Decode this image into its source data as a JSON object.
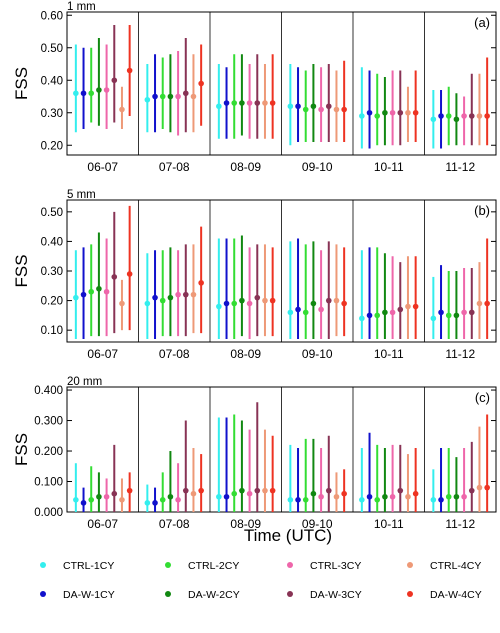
{
  "figure": {
    "xlabel": "Time  (UTC)",
    "ylabel": "FSS"
  },
  "legend": [
    {
      "name": "CTRL-1CY",
      "color": "#33eeee"
    },
    {
      "name": "CTRL-2CY",
      "color": "#33dd33"
    },
    {
      "name": "CTRL-3CY",
      "color": "#ee66aa"
    },
    {
      "name": "CTRL-4CY",
      "color": "#ee9977"
    },
    {
      "name": "DA-W-1CY",
      "color": "#1111cc"
    },
    {
      "name": "DA-W-2CY",
      "color": "#118811"
    },
    {
      "name": "DA-W-3CY",
      "color": "#883355"
    },
    {
      "name": "DA-W-4CY",
      "color": "#ee3322"
    }
  ],
  "chart_data": [
    {
      "type": "scatter",
      "title": "1 mm",
      "panel_label": "(a)",
      "ylabel": "FSS",
      "categories": [
        "06-07",
        "07-08",
        "08-09",
        "09-10",
        "10-11",
        "11-12"
      ],
      "ylim": [
        0.17,
        0.61
      ],
      "yticks": [
        "0.60",
        "0.50",
        "0.40",
        "0.30",
        "0.20"
      ],
      "ytick_values": [
        0.6,
        0.5,
        0.4,
        0.3,
        0.2
      ],
      "series": [
        {
          "name": "CTRL-1CY",
          "mean": [
            0.36,
            0.34,
            0.32,
            0.32,
            0.29,
            0.28
          ],
          "min": [
            0.24,
            0.24,
            0.22,
            0.2,
            0.19,
            0.19
          ],
          "max": [
            0.51,
            0.45,
            0.45,
            0.45,
            0.44,
            0.37
          ]
        },
        {
          "name": "DA-W-1CY",
          "mean": [
            0.36,
            0.35,
            0.33,
            0.32,
            0.3,
            0.29
          ],
          "min": [
            0.25,
            0.24,
            0.22,
            0.21,
            0.19,
            0.19
          ],
          "max": [
            0.5,
            0.48,
            0.44,
            0.44,
            0.43,
            0.37
          ]
        },
        {
          "name": "CTRL-2CY",
          "mean": [
            0.36,
            0.35,
            0.33,
            0.31,
            0.29,
            0.29
          ],
          "min": [
            0.27,
            0.25,
            0.22,
            0.21,
            0.2,
            0.2
          ],
          "max": [
            0.5,
            0.47,
            0.48,
            0.43,
            0.42,
            0.38
          ]
        },
        {
          "name": "DA-W-2CY",
          "mean": [
            0.37,
            0.35,
            0.33,
            0.32,
            0.3,
            0.28
          ],
          "min": [
            0.26,
            0.24,
            0.23,
            0.21,
            0.2,
            0.2
          ],
          "max": [
            0.53,
            0.48,
            0.48,
            0.45,
            0.41,
            0.36
          ]
        },
        {
          "name": "CTRL-3CY",
          "mean": [
            0.37,
            0.35,
            0.33,
            0.31,
            0.3,
            0.29
          ],
          "min": [
            0.25,
            0.23,
            0.22,
            0.21,
            0.2,
            0.2
          ],
          "max": [
            0.51,
            0.49,
            0.45,
            0.44,
            0.43,
            0.35
          ]
        },
        {
          "name": "DA-W-3CY",
          "mean": [
            0.4,
            0.36,
            0.33,
            0.32,
            0.3,
            0.29
          ],
          "min": [
            0.27,
            0.24,
            0.22,
            0.21,
            0.2,
            0.2
          ],
          "max": [
            0.57,
            0.53,
            0.48,
            0.45,
            0.43,
            0.42
          ]
        },
        {
          "name": "CTRL-4CY",
          "mean": [
            0.31,
            0.35,
            0.33,
            0.31,
            0.3,
            0.29
          ],
          "min": [
            0.25,
            0.24,
            0.22,
            0.21,
            0.21,
            0.2
          ],
          "max": [
            0.38,
            0.48,
            0.45,
            0.43,
            0.38,
            0.42
          ]
        },
        {
          "name": "DA-W-4CY",
          "mean": [
            0.43,
            0.39,
            0.33,
            0.31,
            0.3,
            0.29
          ],
          "min": [
            0.29,
            0.26,
            0.22,
            0.21,
            0.21,
            0.2
          ],
          "max": [
            0.57,
            0.51,
            0.48,
            0.46,
            0.43,
            0.47
          ]
        }
      ]
    },
    {
      "type": "scatter",
      "title": "5 mm",
      "panel_label": "(b)",
      "ylabel": "FSS",
      "categories": [
        "06-07",
        "07-08",
        "08-09",
        "09-10",
        "10-11",
        "11-12"
      ],
      "ylim": [
        0.06,
        0.54
      ],
      "yticks": [
        "0.50",
        "0.40",
        "0.30",
        "0.20",
        "0.10"
      ],
      "ytick_values": [
        0.5,
        0.4,
        0.3,
        0.2,
        0.1
      ],
      "series": [
        {
          "name": "CTRL-1CY",
          "mean": [
            0.21,
            0.19,
            0.18,
            0.16,
            0.14,
            0.14
          ],
          "min": [
            0.07,
            0.07,
            0.07,
            0.07,
            0.07,
            0.07
          ],
          "max": [
            0.37,
            0.36,
            0.41,
            0.4,
            0.37,
            0.28
          ]
        },
        {
          "name": "DA-W-1CY",
          "mean": [
            0.22,
            0.21,
            0.19,
            0.17,
            0.15,
            0.16
          ],
          "min": [
            0.07,
            0.07,
            0.07,
            0.07,
            0.07,
            0.07
          ],
          "max": [
            0.38,
            0.37,
            0.41,
            0.41,
            0.38,
            0.32
          ]
        },
        {
          "name": "CTRL-2CY",
          "mean": [
            0.23,
            0.2,
            0.19,
            0.16,
            0.15,
            0.15
          ],
          "min": [
            0.08,
            0.08,
            0.07,
            0.07,
            0.07,
            0.07
          ],
          "max": [
            0.39,
            0.37,
            0.41,
            0.39,
            0.38,
            0.3
          ]
        },
        {
          "name": "DA-W-2CY",
          "mean": [
            0.24,
            0.21,
            0.2,
            0.19,
            0.16,
            0.15
          ],
          "min": [
            0.08,
            0.08,
            0.08,
            0.07,
            0.07,
            0.07
          ],
          "max": [
            0.43,
            0.38,
            0.42,
            0.4,
            0.36,
            0.3
          ]
        },
        {
          "name": "CTRL-3CY",
          "mean": [
            0.23,
            0.22,
            0.19,
            0.17,
            0.16,
            0.16
          ],
          "min": [
            0.08,
            0.08,
            0.07,
            0.07,
            0.07,
            0.07
          ],
          "max": [
            0.41,
            0.37,
            0.38,
            0.37,
            0.35,
            0.31
          ]
        },
        {
          "name": "DA-W-3CY",
          "mean": [
            0.28,
            0.22,
            0.21,
            0.2,
            0.17,
            0.16
          ],
          "min": [
            0.09,
            0.08,
            0.08,
            0.07,
            0.07,
            0.07
          ],
          "max": [
            0.5,
            0.39,
            0.39,
            0.4,
            0.33,
            0.31
          ]
        },
        {
          "name": "CTRL-4CY",
          "mean": [
            0.19,
            0.22,
            0.2,
            0.2,
            0.18,
            0.19
          ],
          "min": [
            0.1,
            0.09,
            0.08,
            0.08,
            0.07,
            0.07
          ],
          "max": [
            0.27,
            0.39,
            0.39,
            0.39,
            0.35,
            0.33
          ]
        },
        {
          "name": "DA-W-4CY",
          "mean": [
            0.29,
            0.26,
            0.2,
            0.19,
            0.18,
            0.19
          ],
          "min": [
            0.1,
            0.09,
            0.08,
            0.08,
            0.07,
            0.07
          ],
          "max": [
            0.52,
            0.45,
            0.38,
            0.38,
            0.35,
            0.41
          ]
        }
      ]
    },
    {
      "type": "scatter",
      "title": "20 mm",
      "panel_label": "(c)",
      "ylabel": "FSS",
      "categories": [
        "06-07",
        "07-08",
        "08-09",
        "09-10",
        "10-11",
        "11-12"
      ],
      "ylim": [
        0,
        0.41
      ],
      "yticks": [
        "0.400",
        "0.300",
        "0.200",
        "0.100",
        "0.000"
      ],
      "ytick_values": [
        0.4,
        0.3,
        0.2,
        0.1,
        0.0
      ],
      "series": [
        {
          "name": "CTRL-1CY",
          "mean": [
            0.04,
            0.03,
            0.05,
            0.04,
            0.04,
            0.04
          ],
          "min": [
            0.0,
            0.0,
            0.0,
            0.0,
            0.0,
            0.0
          ],
          "max": [
            0.16,
            0.09,
            0.31,
            0.22,
            0.21,
            0.14
          ]
        },
        {
          "name": "DA-W-1CY",
          "mean": [
            0.03,
            0.03,
            0.05,
            0.04,
            0.05,
            0.04
          ],
          "min": [
            0.0,
            0.0,
            0.0,
            0.0,
            0.0,
            0.0
          ],
          "max": [
            0.08,
            0.08,
            0.31,
            0.21,
            0.26,
            0.21
          ]
        },
        {
          "name": "CTRL-2CY",
          "mean": [
            0.04,
            0.04,
            0.06,
            0.04,
            0.04,
            0.05
          ],
          "min": [
            0.0,
            0.0,
            0.0,
            0.0,
            0.0,
            0.0
          ],
          "max": [
            0.15,
            0.13,
            0.32,
            0.24,
            0.22,
            0.21
          ]
        },
        {
          "name": "DA-W-2CY",
          "mean": [
            0.05,
            0.05,
            0.07,
            0.06,
            0.05,
            0.05
          ],
          "min": [
            0.0,
            0.0,
            0.0,
            0.0,
            0.0,
            0.0
          ],
          "max": [
            0.13,
            0.2,
            0.3,
            0.24,
            0.21,
            0.18
          ]
        },
        {
          "name": "CTRL-3CY",
          "mean": [
            0.05,
            0.04,
            0.06,
            0.05,
            0.05,
            0.05
          ],
          "min": [
            0.0,
            0.0,
            0.0,
            0.0,
            0.0,
            0.0
          ],
          "max": [
            0.11,
            0.16,
            0.27,
            0.21,
            0.22,
            0.21
          ]
        },
        {
          "name": "DA-W-3CY",
          "mean": [
            0.06,
            0.07,
            0.07,
            0.07,
            0.07,
            0.07
          ],
          "min": [
            0.0,
            0.0,
            0.0,
            0.0,
            0.0,
            0.0
          ],
          "max": [
            0.22,
            0.3,
            0.36,
            0.25,
            0.22,
            0.23
          ]
        },
        {
          "name": "CTRL-4CY",
          "mean": [
            0.04,
            0.06,
            0.07,
            0.05,
            0.05,
            0.08
          ],
          "min": [
            0.0,
            0.0,
            0.0,
            0.0,
            0.0,
            0.0
          ],
          "max": [
            0.11,
            0.21,
            0.27,
            0.13,
            0.19,
            0.28
          ]
        },
        {
          "name": "DA-W-4CY",
          "mean": [
            0.07,
            0.07,
            0.07,
            0.06,
            0.06,
            0.08
          ],
          "min": [
            0.0,
            0.0,
            0.0,
            0.0,
            0.0,
            0.0
          ],
          "max": [
            0.13,
            0.19,
            0.25,
            0.14,
            0.21,
            0.32
          ]
        }
      ]
    }
  ]
}
